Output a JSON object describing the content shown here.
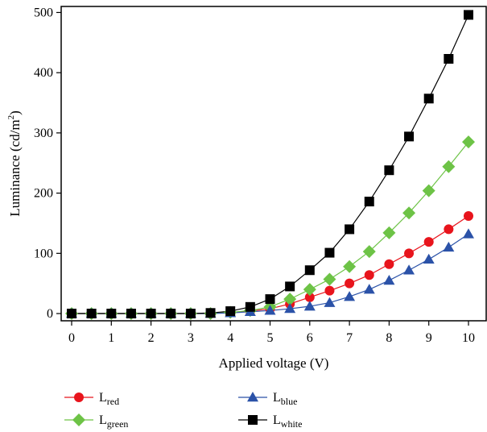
{
  "chart_data": {
    "type": "line",
    "xlabel": "Applied voltage (V)",
    "ylabel": {
      "main": "Luminance (cd/m",
      "sup": "2",
      "close": ")"
    },
    "xlim": [
      0,
      10
    ],
    "ylim": [
      -12,
      510
    ],
    "xticks": [
      0,
      1,
      2,
      3,
      4,
      5,
      6,
      7,
      8,
      9,
      10
    ],
    "yticks": [
      0,
      100,
      200,
      300,
      400,
      500
    ],
    "grid": false,
    "legend_position": "bottom",
    "x": [
      0,
      0.5,
      1,
      1.5,
      2,
      2.5,
      3,
      3.5,
      4,
      4.5,
      5,
      5.5,
      6,
      6.5,
      7,
      7.5,
      8,
      8.5,
      9,
      9.5,
      10
    ],
    "series": [
      {
        "name": "L",
        "sub": "red",
        "color": "#e8141c",
        "marker": "circle",
        "values": [
          0,
          0,
          0,
          0,
          0,
          0,
          0,
          0,
          2,
          4,
          8,
          16,
          27,
          38,
          50,
          64,
          82,
          100,
          119,
          140,
          162
        ]
      },
      {
        "name": "L",
        "sub": "green",
        "color": "#6dc346",
        "marker": "diamond",
        "values": [
          0,
          0,
          0,
          0,
          0,
          0,
          0,
          0,
          2,
          5,
          11,
          24,
          40,
          57,
          78,
          103,
          134,
          167,
          204,
          244,
          285
        ]
      },
      {
        "name": "L",
        "sub": "blue",
        "color": "#2b52a8",
        "marker": "triangle",
        "values": [
          0,
          0,
          0,
          0,
          0,
          0,
          0,
          0,
          1,
          3,
          5,
          8,
          12,
          18,
          28,
          40,
          55,
          72,
          90,
          110,
          132
        ]
      },
      {
        "name": "L",
        "sub": "white",
        "color": "#000000",
        "marker": "square",
        "values": [
          0,
          0,
          0,
          0,
          0,
          0,
          0,
          1,
          4,
          11,
          24,
          45,
          72,
          101,
          140,
          186,
          238,
          294,
          357,
          423,
          496
        ]
      }
    ]
  }
}
